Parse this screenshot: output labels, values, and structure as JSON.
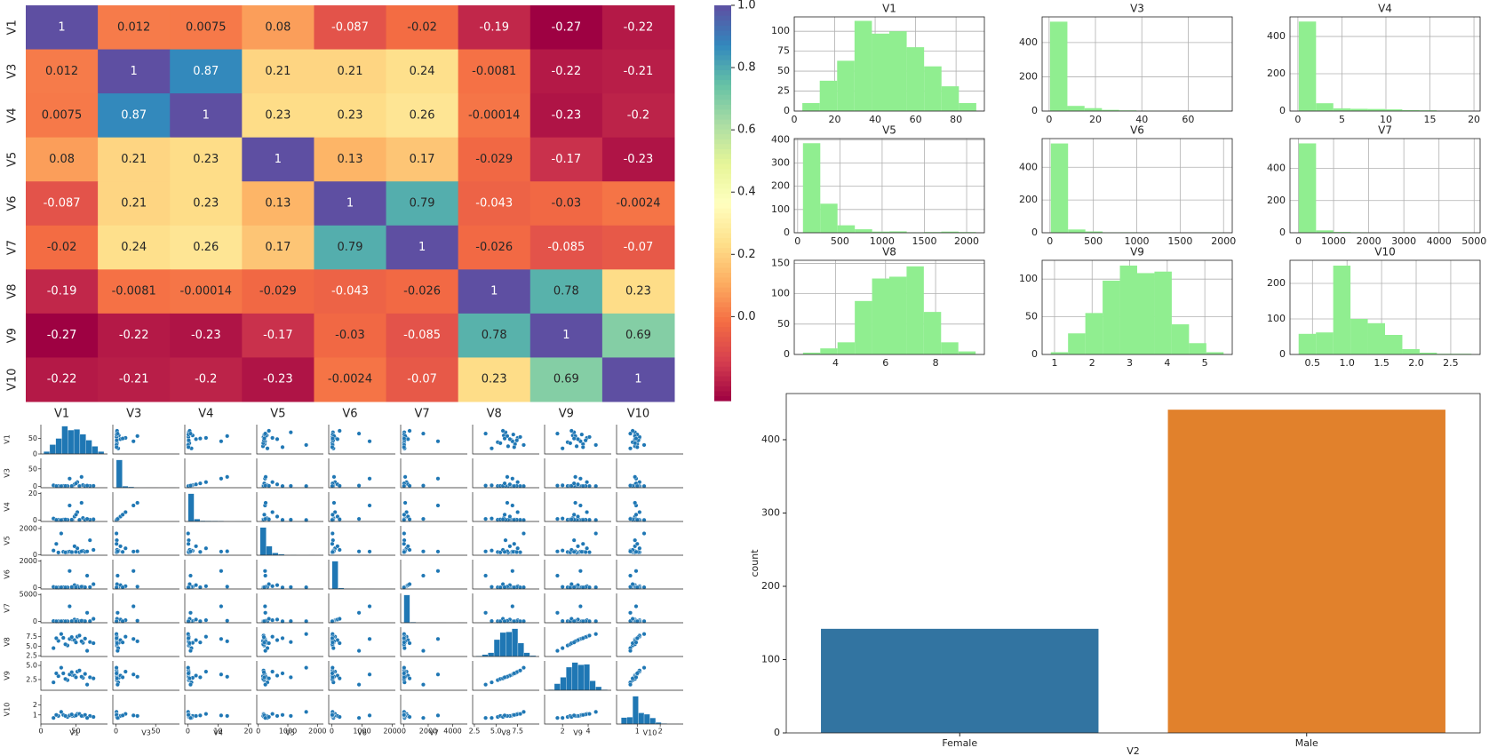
{
  "chart_data": [
    {
      "type": "heatmap",
      "colormap": "Spectral",
      "labels": [
        "V1",
        "V3",
        "V4",
        "V5",
        "V6",
        "V7",
        "V8",
        "V9",
        "V10"
      ],
      "matrix": [
        [
          1,
          0.012,
          0.0075,
          0.08,
          -0.087,
          -0.02,
          -0.19,
          -0.27,
          -0.22
        ],
        [
          0.012,
          1,
          0.87,
          0.21,
          0.21,
          0.24,
          -0.0081,
          -0.22,
          -0.21
        ],
        [
          0.0075,
          0.87,
          1,
          0.23,
          0.23,
          0.26,
          -0.00014,
          -0.23,
          -0.2
        ],
        [
          0.08,
          0.21,
          0.23,
          1,
          0.13,
          0.17,
          -0.029,
          -0.17,
          -0.23
        ],
        [
          -0.087,
          0.21,
          0.23,
          0.13,
          1,
          0.79,
          -0.043,
          -0.03,
          -0.0024
        ],
        [
          -0.02,
          0.24,
          0.26,
          0.17,
          0.79,
          1,
          -0.026,
          -0.085,
          -0.07
        ],
        [
          -0.19,
          -0.0081,
          -0.00014,
          -0.029,
          -0.043,
          -0.026,
          1,
          0.78,
          0.23
        ],
        [
          -0.27,
          -0.22,
          -0.23,
          -0.17,
          -0.03,
          -0.085,
          0.78,
          1,
          0.69
        ],
        [
          -0.22,
          -0.21,
          -0.2,
          -0.23,
          -0.0024,
          -0.07,
          0.23,
          0.69,
          1
        ]
      ],
      "clim": [
        -0.27,
        1
      ],
      "cbar_ticks": [
        {
          "value": 0,
          "label": "0.0"
        },
        0.2,
        0.4,
        0.6,
        0.8,
        {
          "value": 1,
          "label": "1.0"
        }
      ]
    },
    {
      "type": "histogram",
      "color": "#90ee90",
      "grid": true,
      "panels": [
        {
          "title": "V1",
          "bins": [
            4,
            12.6,
            21.2,
            29.8,
            38.4,
            47,
            55.6,
            64.2,
            72.8,
            81.4,
            90
          ],
          "counts": [
            10,
            38,
            63,
            113,
            97,
            100,
            80,
            56,
            31,
            10
          ],
          "xlim": [
            0,
            94
          ],
          "xticks": [
            0,
            20,
            40,
            60,
            80
          ],
          "ylim": [
            0,
            118
          ],
          "yticks": [
            0,
            25,
            50,
            75,
            100
          ]
        },
        {
          "title": "V3",
          "bins": [
            0.4,
            7.9,
            15.3,
            22.8,
            30.2,
            37.7,
            45.1,
            52.6,
            60,
            67.5,
            75
          ],
          "counts": [
            522,
            30,
            17,
            7,
            4,
            2,
            1,
            0,
            0,
            2
          ],
          "xlim": [
            -3,
            79
          ],
          "xticks": [
            0,
            20,
            40,
            60
          ],
          "ylim": [
            0,
            550
          ],
          "yticks": [
            0,
            200,
            400
          ]
        },
        {
          "title": "V4",
          "bins": [
            0.1,
            2.06,
            4.02,
            5.98,
            7.94,
            9.9,
            11.86,
            13.82,
            15.78,
            17.74,
            19.7
          ],
          "counts": [
            480,
            42,
            14,
            12,
            11,
            9,
            5,
            4,
            2,
            2
          ],
          "xlim": [
            -0.9,
            20.7
          ],
          "xticks": [
            0,
            5,
            10,
            15,
            20
          ],
          "ylim": [
            0,
            505
          ],
          "yticks": [
            0,
            200,
            400
          ]
        },
        {
          "title": "V5",
          "bins": [
            63,
            268,
            472,
            677,
            882,
            1086,
            1291,
            1496,
            1700,
            1905,
            2110
          ],
          "counts": [
            385,
            125,
            32,
            15,
            5,
            6,
            2,
            3,
            5,
            3
          ],
          "xlim": [
            -40,
            2210
          ],
          "xticks": [
            0,
            500,
            1000,
            1500,
            2000
          ],
          "ylim": [
            0,
            405
          ],
          "yticks": [
            0,
            100,
            200,
            300,
            400
          ]
        },
        {
          "title": "V6",
          "bins": [
            10,
            209,
            408,
            607,
            806,
            1005,
            1204,
            1403,
            1602,
            1801,
            2000
          ],
          "counts": [
            545,
            20,
            8,
            2,
            3,
            1,
            1,
            0,
            1,
            2
          ],
          "xlim": [
            -90,
            2100
          ],
          "xticks": [
            0,
            500,
            1000,
            1500,
            2000
          ],
          "ylim": [
            0,
            575
          ],
          "yticks": [
            0,
            200,
            400
          ]
        },
        {
          "title": "V7",
          "bins": [
            10,
            502,
            994,
            1486,
            1978,
            2470,
            2961,
            3453,
            3945,
            4437,
            4929
          ],
          "counts": [
            555,
            15,
            5,
            3,
            1,
            1,
            1,
            0,
            0,
            2
          ],
          "xlim": [
            -240,
            5170
          ],
          "xticks": [
            0,
            1000,
            2000,
            3000,
            4000,
            5000
          ],
          "ylim": [
            0,
            585
          ],
          "yticks": [
            0,
            200,
            400
          ]
        },
        {
          "title": "V8",
          "bins": [
            2.7,
            3.39,
            4.08,
            4.77,
            5.46,
            6.15,
            6.84,
            7.53,
            8.22,
            8.91,
            9.6
          ],
          "counts": [
            3,
            10,
            20,
            88,
            125,
            128,
            145,
            70,
            20,
            5
          ],
          "xlim": [
            2.35,
            9.95
          ],
          "xticks": [
            4,
            6,
            8
          ],
          "ylim": [
            0,
            155
          ],
          "yticks": [
            0,
            50,
            100,
            150
          ]
        },
        {
          "title": "V9",
          "bins": [
            0.9,
            1.36,
            1.82,
            2.28,
            2.74,
            3.2,
            3.66,
            4.12,
            4.58,
            5.04,
            5.5
          ],
          "counts": [
            3,
            28,
            55,
            98,
            118,
            108,
            110,
            40,
            15,
            3
          ],
          "xlim": [
            0.67,
            5.73
          ],
          "xticks": [
            1,
            2,
            3,
            4,
            5
          ],
          "ylim": [
            0,
            125
          ],
          "yticks": [
            0,
            50,
            100
          ]
        },
        {
          "title": "V10",
          "bins": [
            0.3,
            0.55,
            0.8,
            1.05,
            1.3,
            1.55,
            1.8,
            2.05,
            2.3,
            2.55,
            2.8
          ],
          "counts": [
            58,
            62,
            250,
            100,
            88,
            55,
            15,
            5,
            2,
            2
          ],
          "xlim": [
            0.175,
            2.925
          ],
          "xticks": [
            0.5,
            {
              "value": 1,
              "label": "1.0"
            },
            1.5,
            {
              "value": 2,
              "label": "2.0"
            },
            2.5
          ],
          "ylim": [
            0,
            265
          ],
          "yticks": [
            0,
            100,
            200
          ]
        }
      ]
    },
    {
      "type": "pairplot",
      "color": "#1f77b4",
      "columns": [
        {
          "name": "V1",
          "xlim": [
            0,
            95
          ],
          "xticks": [
            0,
            50
          ],
          "yticks": [
            0,
            50
          ],
          "values": [
            45,
            32,
            60,
            25,
            52,
            38,
            70,
            41,
            55,
            18,
            48,
            63,
            35,
            29,
            58,
            44,
            75,
            50,
            22,
            66
          ]
        },
        {
          "name": "V3",
          "xlim": [
            -4,
            80
          ],
          "xticks": [
            0,
            50
          ],
          "yticks": [
            0,
            50
          ],
          "values": [
            0.7,
            1.2,
            3.5,
            0.8,
            12,
            0.9,
            1,
            22,
            0.7,
            2.8,
            5.6,
            0.8,
            1.1,
            0.6,
            27,
            0.9,
            1.3,
            8.4,
            0.7,
            2
          ]
        },
        {
          "name": "V4",
          "xlim": [
            -1,
            21
          ],
          "xticks": [
            0,
            10,
            20
          ],
          "yticks": [
            0,
            20
          ],
          "values": [
            0.2,
            0.4,
            1.6,
            0.2,
            6,
            0.3,
            0.3,
            11,
            0.2,
            1.2,
            2.7,
            0.2,
            0.5,
            0.1,
            13,
            0.3,
            0.6,
            4.1,
            0.2,
            0.9
          ]
        },
        {
          "name": "V5",
          "xlim": [
            -50,
            2200
          ],
          "xticks": [
            0,
            1000,
            2000
          ],
          "yticks": [
            0,
            2000
          ],
          "values": [
            187,
            215,
            290,
            160,
            480,
            195,
            1100,
            230,
            180,
            310,
            640,
            210,
            170,
            1620,
            250,
            190,
            360,
            205,
            820,
            240
          ]
        },
        {
          "name": "V6",
          "xlim": [
            -100,
            2100
          ],
          "xticks": [
            0,
            1000,
            2000
          ],
          "yticks": [
            0,
            2000
          ],
          "values": [
            20,
            35,
            60,
            15,
            110,
            25,
            40,
            1250,
            22,
            55,
            190,
            30,
            18,
            26,
            75,
            45,
            260,
            28,
            16,
            900
          ]
        },
        {
          "name": "V7",
          "xlim": [
            -250,
            5200
          ],
          "xticks": [
            0,
            2000,
            4000
          ],
          "yticks": [
            0,
            5000
          ],
          "values": [
            25,
            40,
            90,
            20,
            230,
            30,
            45,
            2800,
            28,
            65,
            350,
            35,
            22,
            30,
            120,
            52,
            480,
            33,
            21,
            1600
          ]
        },
        {
          "name": "V8",
          "xlim": [
            2.3,
            10
          ],
          "xticks": [
            2.5,
            {
              "value": 5,
              "label": "5.0"
            },
            7.5
          ],
          "yticks": [
            2.5,
            {
              "value": 5,
              "label": "5.0"
            },
            7.5
          ],
          "values": [
            6.8,
            7.2,
            5.9,
            6.4,
            7.5,
            5.2,
            6.1,
            6.9,
            7.8,
            4.5,
            6.6,
            7,
            5.5,
            8.2,
            6.3,
            7.4,
            5.8,
            6,
            7.1,
            3.8
          ]
        },
        {
          "name": "V9",
          "xlim": [
            0.6,
            5.8
          ],
          "xticks": [
            2,
            4
          ],
          "yticks": [
            2.5,
            {
              "value": 5,
              "label": "5.0"
            }
          ],
          "values": [
            3.3,
            3.6,
            2.8,
            3.1,
            3.9,
            2.4,
            2.9,
            3.4,
            4.1,
            2,
            3.2,
            3.5,
            2.6,
            4.6,
            3,
            3.8,
            2.7,
            2.9,
            3.6,
            1.6
          ]
        },
        {
          "name": "V10",
          "xlim": [
            0.1,
            3
          ],
          "xticks": [
            1,
            2
          ],
          "yticks": [
            1,
            2
          ],
          "values": [
            0.9,
            1,
            0.9,
            0.9,
            1.1,
            0.8,
            0.9,
            0.95,
            1.1,
            0.7,
            0.9,
            1,
            0.9,
            1.3,
            0.9,
            1.05,
            0.8,
            0.95,
            1,
            0.7
          ]
        }
      ]
    },
    {
      "type": "bar",
      "xlabel": "V2",
      "ylabel": "count",
      "categories": [
        "Female",
        "Male"
      ],
      "values": [
        142,
        441
      ],
      "colors": [
        "#3274a1",
        "#e1812c"
      ],
      "ylim": [
        0,
        463
      ],
      "yticks": [
        0,
        100,
        200,
        300,
        400
      ]
    }
  ]
}
